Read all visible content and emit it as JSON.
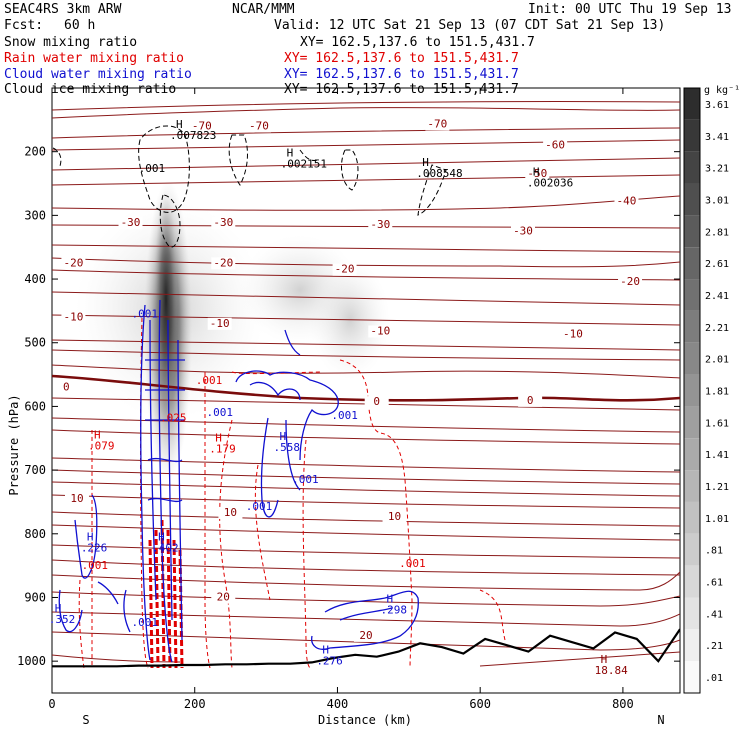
{
  "header": {
    "model": "SEAC4RS  3km ARW",
    "org": "NCAR/MMM",
    "init": "Init: 00 UTC Thu 19 Sep 13",
    "fcst_label": "Fcst:",
    "fcst_value": "60 h",
    "valid": "Valid: 12 UTC Sat 21 Sep 13 (07 CDT Sat 21 Sep 13)"
  },
  "fields": [
    {
      "name": "Snow mixing ratio",
      "xy": "XY= 162.5,137.6 to 151.5,431.7",
      "color": "#000000"
    },
    {
      "name": "Rain water mixing ratio",
      "xy": "XY= 162.5,137.6 to 151.5,431.7",
      "color": "#e00000"
    },
    {
      "name": "Cloud water mixing ratio",
      "xy": "XY= 162.5,137.6 to 151.5,431.7",
      "color": "#1010d0"
    },
    {
      "name": "Cloud ice mixing ratio",
      "xy": "XY= 162.5,137.6 to 151.5,431.7",
      "color": "#000000"
    }
  ],
  "chart_data": {
    "type": "heatmap",
    "xlabel": "Distance (km)",
    "ylabel": "Pressure (hPa)",
    "xlim": [
      0,
      880
    ],
    "ylim": [
      1050,
      100
    ],
    "x_ticks": [
      0,
      200,
      400,
      600,
      800
    ],
    "y_ticks": [
      200,
      300,
      400,
      500,
      600,
      700,
      800,
      900,
      1000
    ],
    "endpoints": {
      "left": "S",
      "right": "N"
    },
    "colorbar": {
      "unit": "g kg⁻¹",
      "levels": [
        "3.61",
        "3.41",
        "3.21",
        "3.01",
        "2.81",
        "2.61",
        "2.41",
        "2.21",
        "2.01",
        "1.81",
        "1.61",
        "1.41",
        "1.21",
        "1.01",
        ".81",
        ".61",
        ".41",
        ".21",
        ".01"
      ]
    },
    "temperature_labels": [
      {
        "text": "-70",
        "x": 210,
        "p": 165
      },
      {
        "text": "-70",
        "x": 290,
        "p": 165
      },
      {
        "text": "-70",
        "x": 540,
        "p": 162
      },
      {
        "text": "-60",
        "x": 705,
        "p": 195
      },
      {
        "text": "-50",
        "x": 680,
        "p": 240
      },
      {
        "text": "-40",
        "x": 805,
        "p": 283
      },
      {
        "text": "-30",
        "x": 110,
        "p": 317
      },
      {
        "text": "-30",
        "x": 240,
        "p": 317
      },
      {
        "text": "-30",
        "x": 460,
        "p": 320
      },
      {
        "text": "-30",
        "x": 660,
        "p": 330
      },
      {
        "text": "-20",
        "x": 30,
        "p": 380
      },
      {
        "text": "-20",
        "x": 240,
        "p": 380
      },
      {
        "text": "-20",
        "x": 410,
        "p": 390
      },
      {
        "text": "-20",
        "x": 810,
        "p": 409
      },
      {
        "text": "-10",
        "x": 30,
        "p": 465
      },
      {
        "text": "-10",
        "x": 235,
        "p": 475
      },
      {
        "text": "-10",
        "x": 460,
        "p": 487
      },
      {
        "text": "-10",
        "x": 730,
        "p": 492
      },
      {
        "text": "0",
        "x": 20,
        "p": 575
      },
      {
        "text": "0",
        "x": 455,
        "p": 598
      },
      {
        "text": "0",
        "x": 670,
        "p": 596
      },
      {
        "text": "10",
        "x": 35,
        "p": 750
      },
      {
        "text": "10",
        "x": 250,
        "p": 772
      },
      {
        "text": "10",
        "x": 480,
        "p": 778
      },
      {
        "text": "20",
        "x": 240,
        "p": 905
      },
      {
        "text": "20",
        "x": 440,
        "p": 965
      }
    ],
    "maxima_labels": [
      {
        "text": ".007823",
        "x": 185,
        "p": 180,
        "color": "#000000"
      },
      {
        "text": ".002151",
        "x": 340,
        "p": 225,
        "color": "#000000"
      },
      {
        "text": ".008548",
        "x": 530,
        "p": 240,
        "color": "#000000"
      },
      {
        "text": ".002036",
        "x": 685,
        "p": 255,
        "color": "#000000"
      },
      {
        "text": ".079",
        "x": 70,
        "p": 668,
        "color": "#e00000"
      },
      {
        "text": ".179",
        "x": 240,
        "p": 672,
        "color": "#e00000"
      },
      {
        "text": ".558",
        "x": 330,
        "p": 670,
        "color": "#1010d0"
      },
      {
        "text": ".226",
        "x": 60,
        "p": 828,
        "color": "#1010d0"
      },
      {
        "text": ".402",
        "x": 160,
        "p": 828,
        "color": "#1010d0"
      },
      {
        "text": ".352",
        "x": 15,
        "p": 940,
        "color": "#1010d0"
      },
      {
        "text": ".298",
        "x": 480,
        "p": 925,
        "color": "#1010d0"
      },
      {
        "text": ".276",
        "x": 390,
        "p": 1005,
        "color": "#1010d0"
      },
      {
        "text": "18.84",
        "x": 780,
        "p": 1020,
        "color": "#8b0000"
      }
    ],
    "small_labels": [
      {
        "text": ".001",
        "x": 140,
        "p": 232,
        "color": "#000000"
      },
      {
        "text": ".001",
        "x": 130,
        "p": 460,
        "color": "#1010d0"
      },
      {
        "text": ".001",
        "x": 235,
        "p": 615,
        "color": "#1010d0"
      },
      {
        "text": ".001",
        "x": 410,
        "p": 620,
        "color": "#1010d0"
      },
      {
        "text": ".001",
        "x": 355,
        "p": 720,
        "color": "#1010d0"
      },
      {
        "text": ".001",
        "x": 290,
        "p": 763,
        "color": "#1010d0"
      },
      {
        "text": ".001",
        "x": 505,
        "p": 852,
        "color": "#e00000"
      },
      {
        "text": ".001",
        "x": 60,
        "p": 855,
        "color": "#e00000"
      },
      {
        "text": ".001",
        "x": 130,
        "p": 945,
        "color": "#1010d0"
      },
      {
        "text": ".001",
        "x": 220,
        "p": 565,
        "color": "#e00000"
      },
      {
        "text": ".025",
        "x": 170,
        "p": 624,
        "color": "#e00000"
      }
    ],
    "terrain_pressure": [
      1008,
      1008,
      1008,
      1008,
      1007,
      1007,
      1006,
      1006,
      1005,
      1005,
      1004,
      1004,
      1002,
      995,
      990,
      993,
      985,
      972,
      978,
      988,
      965,
      975,
      985,
      960,
      970,
      980,
      955,
      965,
      1000,
      950
    ]
  }
}
